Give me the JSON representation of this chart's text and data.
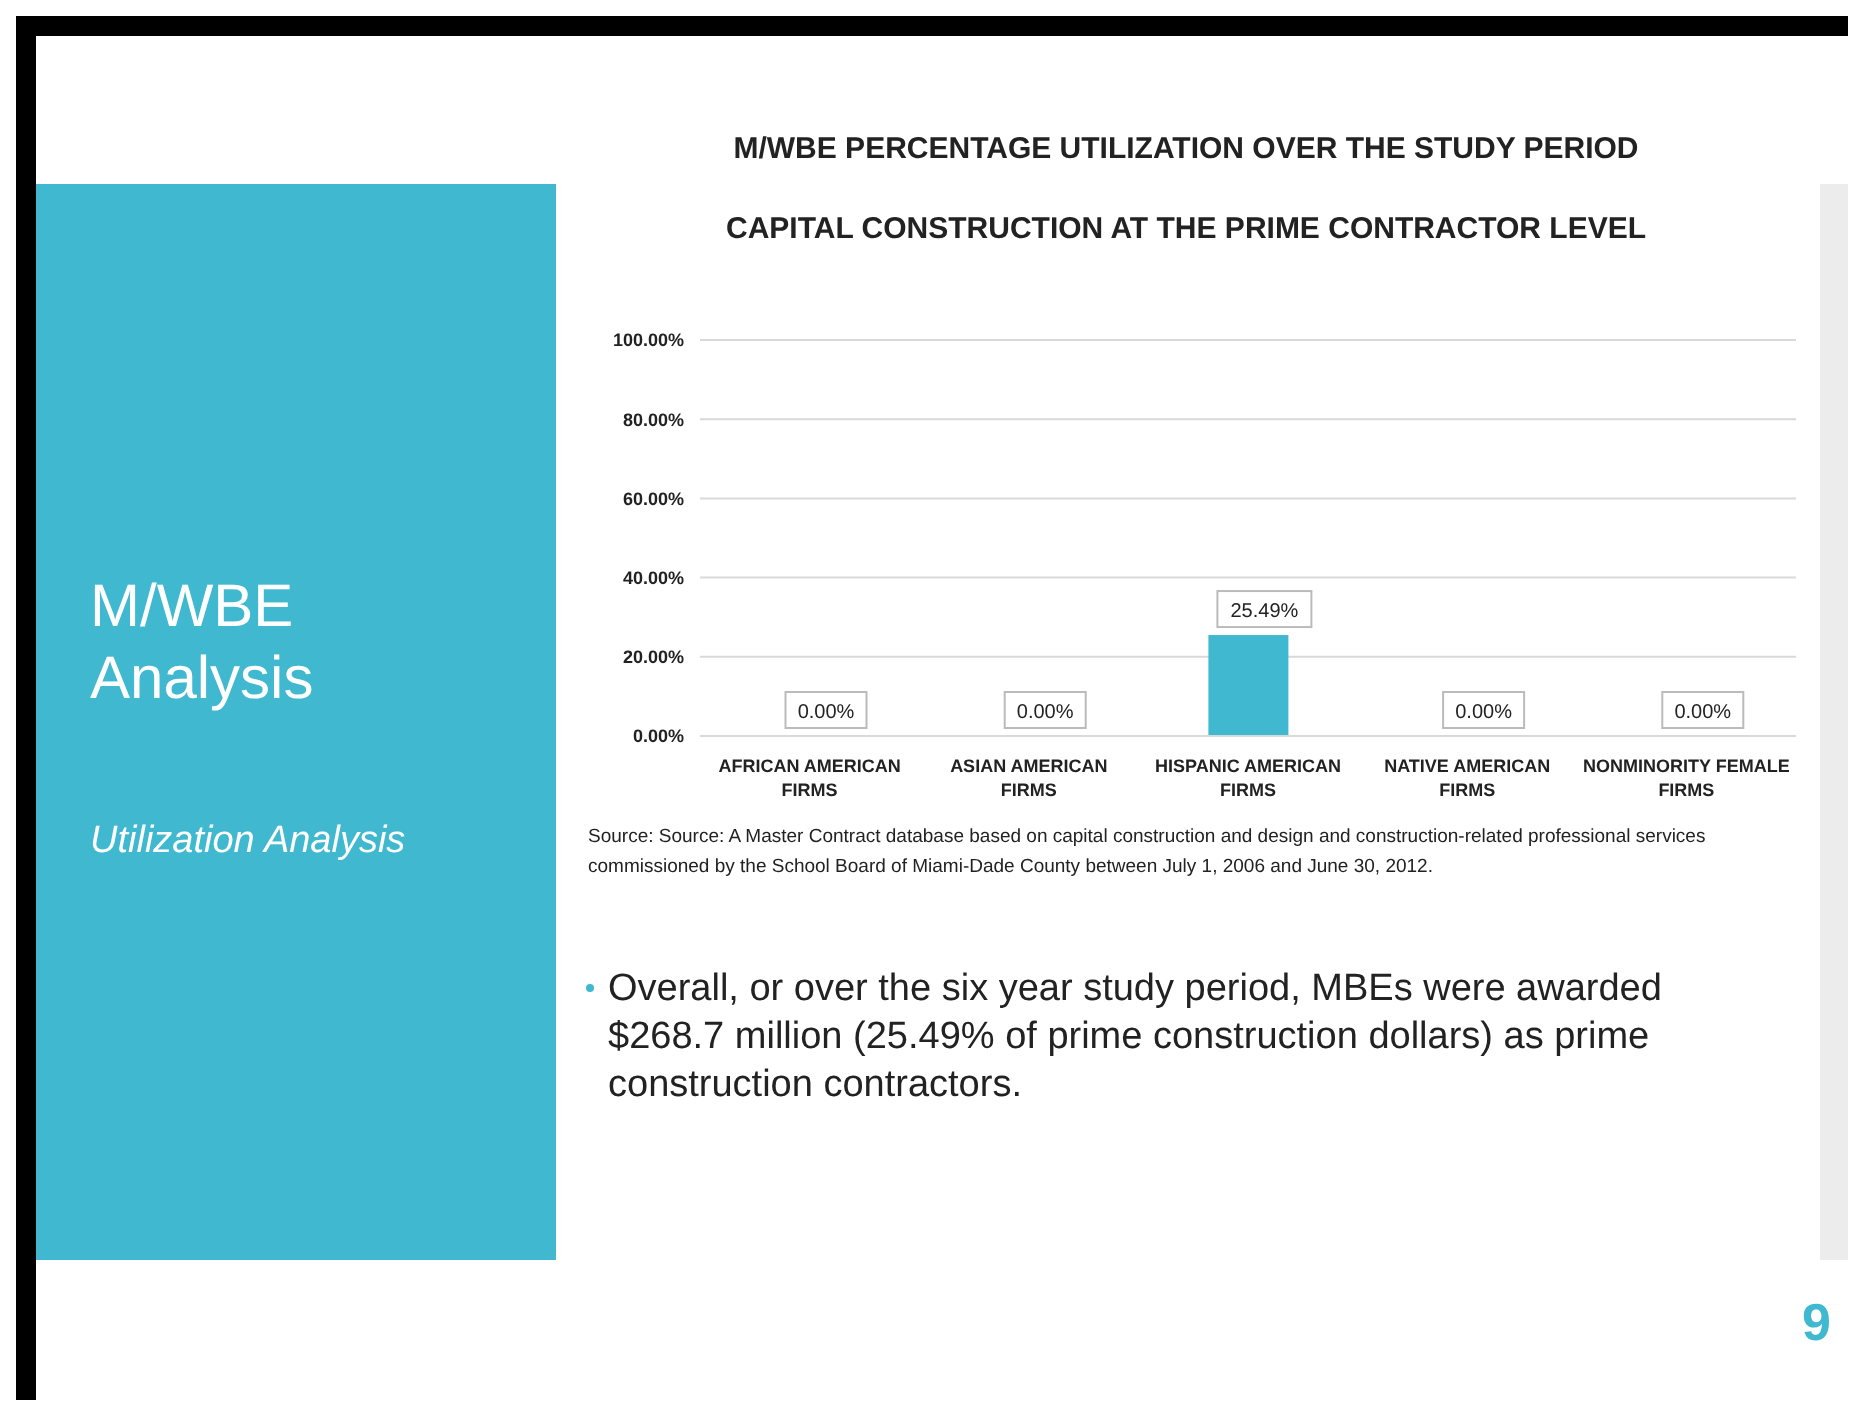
{
  "chart_data": {
    "type": "bar",
    "title": "M/WBE PERCENTAGE UTILIZATION OVER THE STUDY PERIOD",
    "subtitle": "CAPITAL CONSTRUCTION AT THE PRIME CONTRACTOR LEVEL",
    "categories": [
      "AFRICAN AMERICAN FIRMS",
      "ASIAN AMERICAN FIRMS",
      "HISPANIC AMERICAN FIRMS",
      "NATIVE AMERICAN FIRMS",
      "NONMINORITY FEMALE FIRMS"
    ],
    "values": [
      0,
      0,
      25.49,
      0,
      0
    ],
    "color": "#3fb8d0",
    "value_labels": [
      "0.00%",
      "0.00%",
      "25.49%",
      "0.00%",
      "0.00%"
    ],
    "ylim": [
      0,
      100
    ],
    "yticks": [
      {
        "value": 0,
        "label": "0.00%"
      },
      {
        "value": 20,
        "label": "20.00%"
      },
      {
        "value": 40,
        "label": "40.00%"
      },
      {
        "value": 60,
        "label": "60.00%"
      },
      {
        "value": 80,
        "label": "80.00%"
      },
      {
        "value": 100,
        "label": "100.00%"
      }
    ],
    "grid": "y",
    "legend": false,
    "annotations": [
      "M/WBE Analysis",
      "Utilization Analysis",
      "Source: Source: A Master Contract database based on capital construction and design and construction-related professional services commissioned by the School Board of Miami-Dade County between July 1, 2006 and June 30, 2012.",
      "Overall, or over the six year study period, MBEs were awarded $268.7 million (25.49% of prime construction dollars) as prime construction contractors.",
      "9"
    ]
  }
}
